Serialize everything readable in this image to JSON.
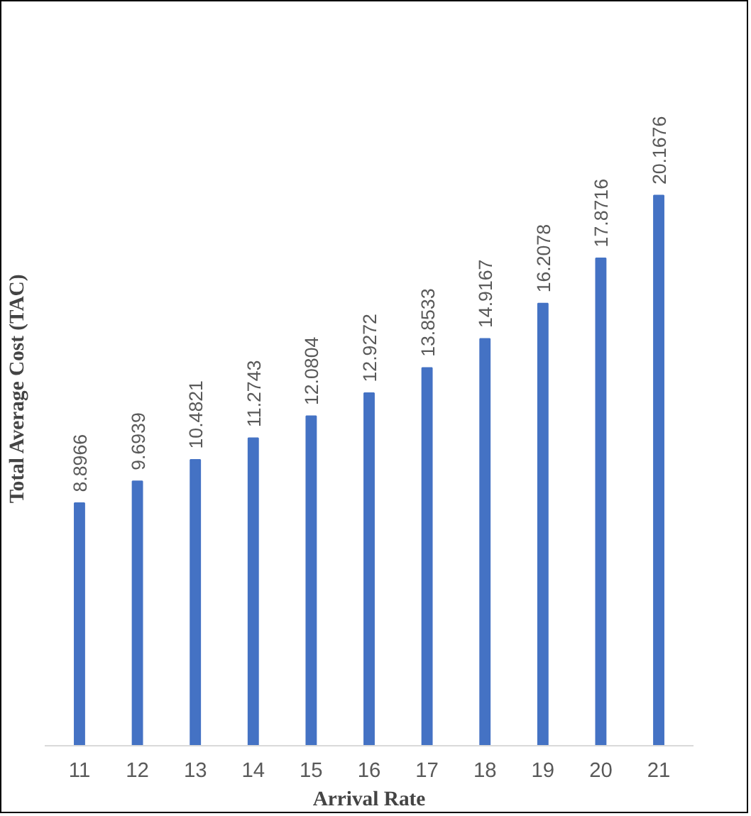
{
  "chart_data": {
    "type": "bar",
    "xlabel": "Arrival Rate",
    "ylabel": "Total Average Cost (TAC)",
    "categories": [
      "11",
      "12",
      "13",
      "14",
      "15",
      "16",
      "17",
      "18",
      "19",
      "20",
      "21"
    ],
    "values": [
      8.8966,
      9.6939,
      10.4821,
      11.2743,
      12.0804,
      12.9272,
      13.8533,
      14.9167,
      16.2078,
      17.8716,
      20.1676
    ],
    "color": "#4472c4",
    "data_labels": true,
    "tick_labels": "x",
    "grid": false
  }
}
